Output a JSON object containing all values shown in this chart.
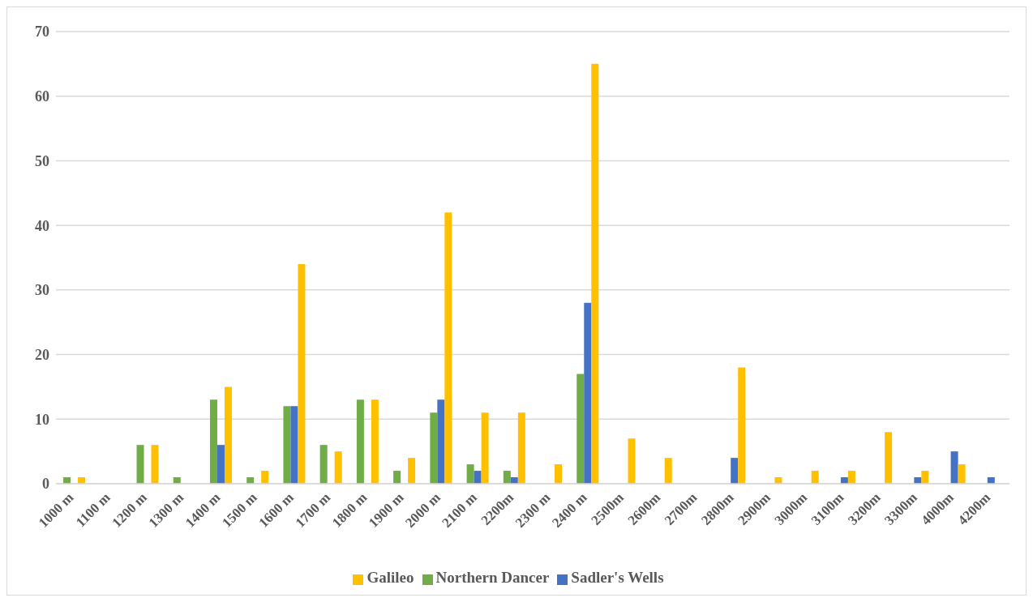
{
  "chart_data": {
    "type": "bar",
    "categories": [
      "1000 m",
      "1100 m",
      "1200 m",
      "1300 m",
      "1400 m",
      "1500 m",
      "1600 m",
      "1700 m",
      "1800 m",
      "1900 m",
      "2000 m",
      "2100 m",
      "2200m",
      "2300 m",
      "2400 m",
      "2500m",
      "2600m",
      "2700m",
      "2800m",
      "2900m",
      "3000m",
      "3100m",
      "3200m",
      "3300m",
      "4000m",
      "4200m"
    ],
    "series": [
      {
        "name": "Northern Dancer",
        "color": "#70ad47",
        "values": [
          1,
          null,
          6,
          1,
          13,
          1,
          12,
          6,
          13,
          2,
          11,
          3,
          2,
          null,
          17,
          null,
          null,
          null,
          null,
          null,
          null,
          null,
          null,
          null,
          null,
          null
        ]
      },
      {
        "name": "Sadler's Wells",
        "color": "#4472c4",
        "values": [
          null,
          null,
          null,
          null,
          6,
          null,
          12,
          null,
          null,
          null,
          13,
          2,
          1,
          null,
          28,
          null,
          null,
          null,
          4,
          null,
          null,
          1,
          null,
          1,
          5,
          1
        ]
      },
      {
        "name": "Galileo",
        "color": "#ffc000",
        "values": [
          1,
          null,
          6,
          null,
          15,
          2,
          34,
          5,
          13,
          4,
          42,
          11,
          11,
          3,
          65,
          7,
          4,
          null,
          18,
          1,
          2,
          2,
          8,
          2,
          3,
          null
        ]
      }
    ],
    "ylim": [
      0,
      70
    ],
    "yticks": [
      0,
      10,
      20,
      30,
      40,
      50,
      60,
      70
    ],
    "grid": "y",
    "legend": "bottom"
  }
}
